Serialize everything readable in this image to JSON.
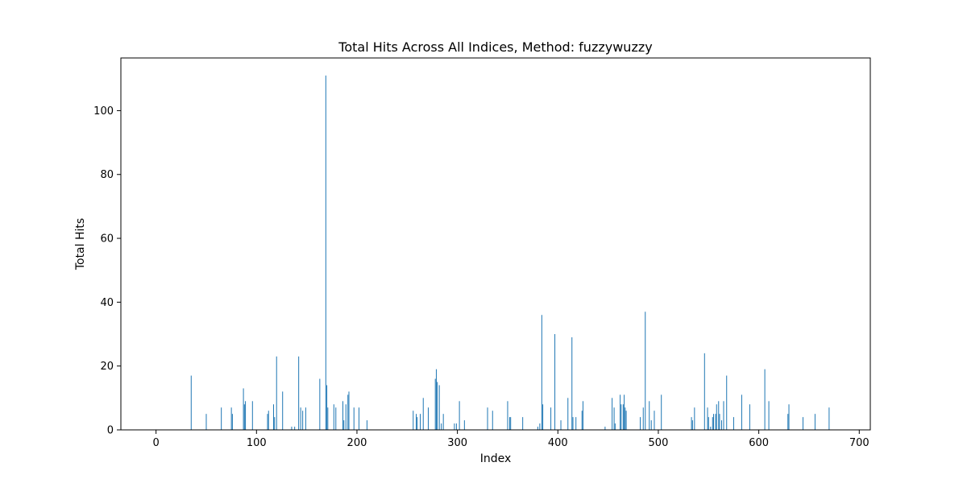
{
  "chart_data": {
    "type": "bar",
    "title": "Total Hits Across All Indices, Method: fuzzywuzzy",
    "xlabel": "Index",
    "ylabel": "Total Hits",
    "xlim": [
      -35,
      711
    ],
    "ylim": [
      0,
      116.5
    ],
    "xticks": [
      0,
      100,
      200,
      300,
      400,
      500,
      600,
      700
    ],
    "yticks": [
      0,
      20,
      40,
      60,
      80,
      100
    ],
    "grid": false,
    "bar_color": "#1f77b4",
    "points": [
      [
        35,
        17
      ],
      [
        50,
        5
      ],
      [
        65,
        7
      ],
      [
        75,
        7
      ],
      [
        76,
        5
      ],
      [
        87,
        13
      ],
      [
        88,
        8
      ],
      [
        89,
        9
      ],
      [
        96,
        9
      ],
      [
        111,
        5
      ],
      [
        112,
        6
      ],
      [
        117,
        8
      ],
      [
        118,
        4
      ],
      [
        120,
        23
      ],
      [
        126,
        12
      ],
      [
        135,
        1
      ],
      [
        138,
        1
      ],
      [
        142,
        23
      ],
      [
        144,
        7
      ],
      [
        146,
        6
      ],
      [
        149,
        7
      ],
      [
        163,
        16
      ],
      [
        169,
        111
      ],
      [
        170,
        14
      ],
      [
        171,
        7
      ],
      [
        177,
        8
      ],
      [
        179,
        7
      ],
      [
        186,
        9
      ],
      [
        187,
        3
      ],
      [
        189,
        8
      ],
      [
        191,
        11
      ],
      [
        192,
        12
      ],
      [
        197,
        7
      ],
      [
        202,
        7
      ],
      [
        210,
        3
      ],
      [
        256,
        6
      ],
      [
        259,
        5
      ],
      [
        260,
        4
      ],
      [
        263,
        5
      ],
      [
        266,
        10
      ],
      [
        271,
        7
      ],
      [
        278,
        16
      ],
      [
        279,
        19
      ],
      [
        280,
        15
      ],
      [
        282,
        14
      ],
      [
        284,
        2
      ],
      [
        286,
        5
      ],
      [
        297,
        2
      ],
      [
        299,
        2
      ],
      [
        302,
        9
      ],
      [
        307,
        3
      ],
      [
        330,
        7
      ],
      [
        335,
        6
      ],
      [
        350,
        9
      ],
      [
        352,
        4
      ],
      [
        353,
        4
      ],
      [
        365,
        4
      ],
      [
        380,
        1
      ],
      [
        382,
        2
      ],
      [
        384,
        36
      ],
      [
        385,
        8
      ],
      [
        393,
        7
      ],
      [
        397,
        30
      ],
      [
        403,
        3
      ],
      [
        410,
        10
      ],
      [
        414,
        29
      ],
      [
        415,
        4
      ],
      [
        418,
        4
      ],
      [
        424,
        6
      ],
      [
        425,
        9
      ],
      [
        447,
        1
      ],
      [
        454,
        10
      ],
      [
        456,
        7
      ],
      [
        457,
        2
      ],
      [
        462,
        11
      ],
      [
        463,
        8
      ],
      [
        465,
        8
      ],
      [
        466,
        11
      ],
      [
        467,
        7
      ],
      [
        468,
        6
      ],
      [
        482,
        4
      ],
      [
        485,
        7
      ],
      [
        487,
        37
      ],
      [
        491,
        9
      ],
      [
        493,
        3
      ],
      [
        496,
        6
      ],
      [
        503,
        11
      ],
      [
        533,
        4
      ],
      [
        534,
        3
      ],
      [
        536,
        7
      ],
      [
        546,
        24
      ],
      [
        549,
        7
      ],
      [
        550,
        4
      ],
      [
        552,
        1
      ],
      [
        554,
        4
      ],
      [
        555,
        5
      ],
      [
        557,
        5
      ],
      [
        558,
        8
      ],
      [
        560,
        9
      ],
      [
        561,
        5
      ],
      [
        563,
        3
      ],
      [
        565,
        9
      ],
      [
        568,
        17
      ],
      [
        575,
        4
      ],
      [
        583,
        11
      ],
      [
        591,
        8
      ],
      [
        606,
        19
      ],
      [
        610,
        9
      ],
      [
        629,
        5
      ],
      [
        630,
        8
      ],
      [
        644,
        4
      ],
      [
        656,
        5
      ],
      [
        670,
        7
      ]
    ]
  }
}
